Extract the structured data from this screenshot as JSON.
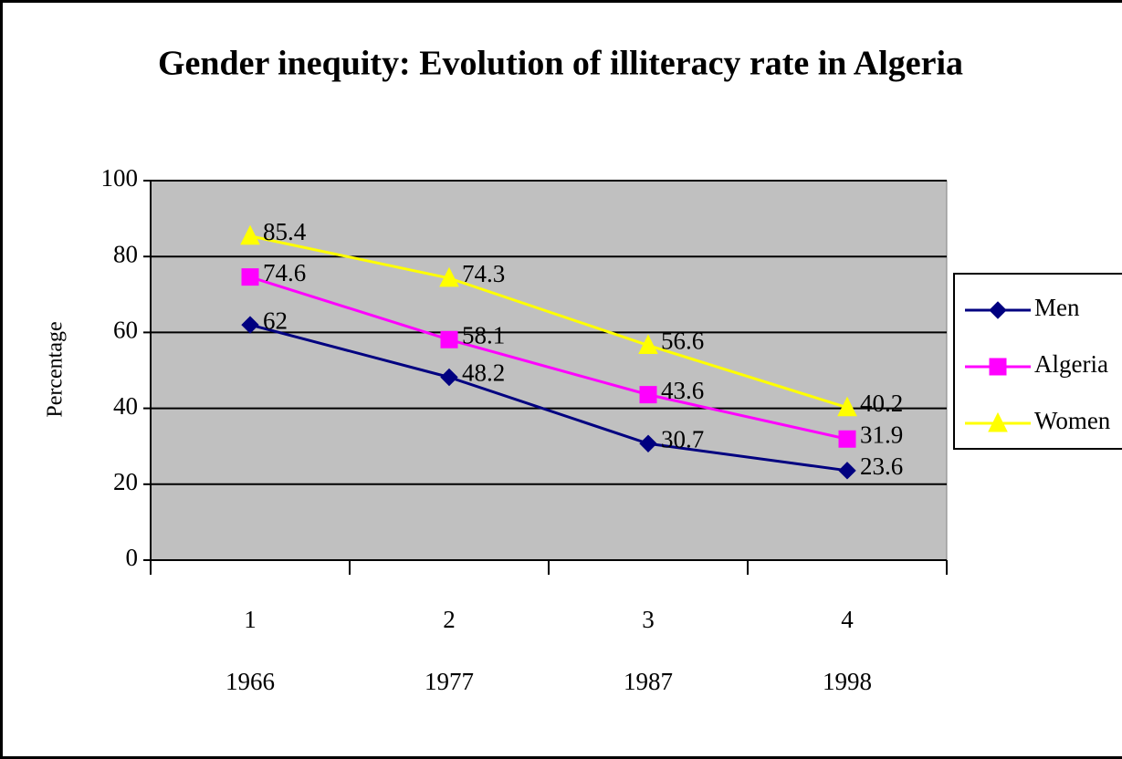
{
  "chart_data": {
    "type": "line",
    "title": "Gender inequity: Evolution of illiteracy rate in Algeria",
    "y_label": "Percentage",
    "categories": [
      "1",
      "2",
      "3",
      "4"
    ],
    "x_sublabels": [
      "1966",
      "1977",
      "1987",
      "1998"
    ],
    "series": [
      {
        "name": "Men",
        "color": "#000080",
        "marker": "diamond",
        "values": [
          62,
          48.2,
          30.7,
          23.6
        ]
      },
      {
        "name": "Algeria",
        "color": "#ff00ff",
        "marker": "square",
        "values": [
          74.6,
          58.1,
          43.6,
          31.9
        ]
      },
      {
        "name": "Women",
        "color": "#ffff00",
        "marker": "triangle",
        "values": [
          85.4,
          74.3,
          56.6,
          40.2
        ]
      }
    ],
    "ylim": [
      0,
      100
    ],
    "yticks": [
      0,
      20,
      40,
      60,
      80,
      100
    ],
    "grid": true,
    "legend": "right"
  }
}
